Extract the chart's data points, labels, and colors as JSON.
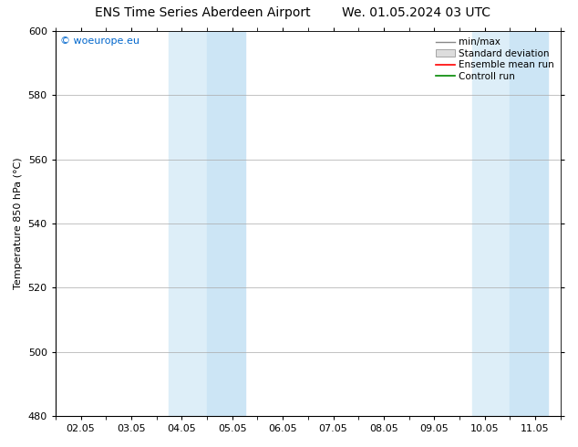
{
  "title_left": "ENS Time Series Aberdeen Airport",
  "title_right": "We. 01.05.2024 03 UTC",
  "ylabel": "Temperature 850 hPa (°C)",
  "ylim": [
    480,
    600
  ],
  "yticks": [
    480,
    500,
    520,
    540,
    560,
    580,
    600
  ],
  "xtick_labels": [
    "02.05",
    "03.05",
    "04.05",
    "05.05",
    "06.05",
    "07.05",
    "08.05",
    "09.05",
    "10.05",
    "11.05"
  ],
  "xtick_positions": [
    2,
    3,
    4,
    5,
    6,
    7,
    8,
    9,
    10,
    11
  ],
  "xlim": [
    1.5,
    11.5
  ],
  "shaded_bands": [
    {
      "xstart": 3.75,
      "xend": 4.5,
      "color": "#ddeef8"
    },
    {
      "xstart": 4.5,
      "xend": 5.25,
      "color": "#cce5f5"
    },
    {
      "xstart": 9.75,
      "xend": 10.5,
      "color": "#ddeef8"
    },
    {
      "xstart": 10.5,
      "xend": 11.25,
      "color": "#cce5f5"
    }
  ],
  "background_color": "#ffffff",
  "plot_bg_color": "#ffffff",
  "grid_color": "#aaaaaa",
  "legend_items": [
    "min/max",
    "Standard deviation",
    "Ensemble mean run",
    "Controll run"
  ],
  "legend_line_colors": [
    "#888888",
    "#cccccc",
    "#ff0000",
    "#008800"
  ],
  "watermark": "© woeurope.eu",
  "watermark_color": "#0066cc",
  "title_fontsize": 10,
  "ylabel_fontsize": 8,
  "tick_fontsize": 8,
  "legend_fontsize": 7.5,
  "watermark_fontsize": 8
}
